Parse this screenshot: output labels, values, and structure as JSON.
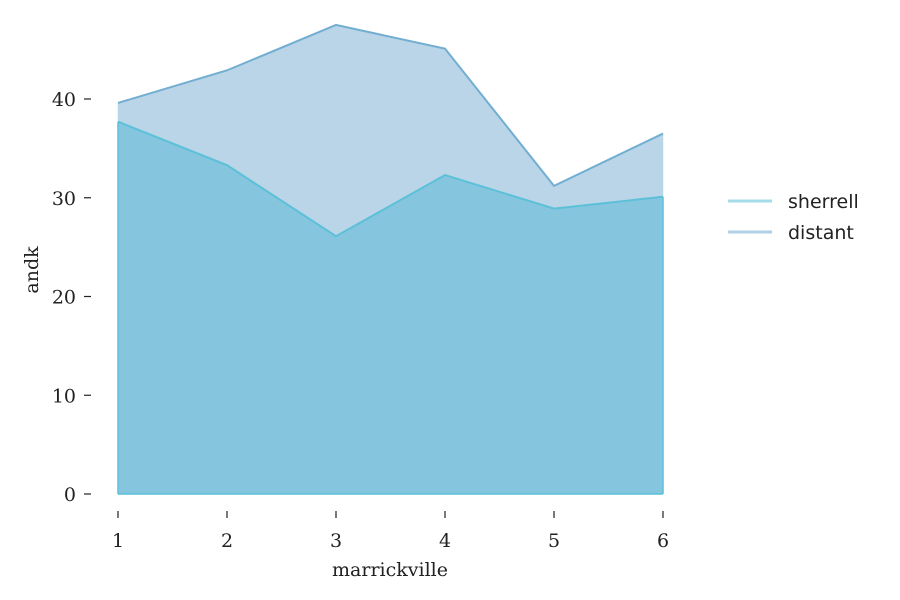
{
  "chart_data": {
    "type": "area",
    "stacked": true,
    "x": [
      1,
      2,
      3,
      4,
      5,
      6
    ],
    "series": [
      {
        "name": "sherrell",
        "values": [
          37.7,
          33.3,
          26.1,
          32.3,
          28.9,
          30.1
        ],
        "line_color": "#5bc0d8",
        "fill_color": "#86c5de"
      },
      {
        "name": "distant",
        "values": [
          1.9,
          9.6,
          21.4,
          12.8,
          2.3,
          6.4
        ],
        "line_color": "#72aed2",
        "fill_color": "#b9d5e7"
      }
    ],
    "xlabel": "marrickville",
    "ylabel": "andk",
    "xlim": [
      1,
      6
    ],
    "ylim": [
      0,
      48
    ],
    "xticks": [
      "1",
      "2",
      "3",
      "4",
      "5",
      "6"
    ],
    "yticks": [
      "0",
      "10",
      "20",
      "30",
      "40"
    ],
    "grid": false,
    "legend_position": "right"
  }
}
